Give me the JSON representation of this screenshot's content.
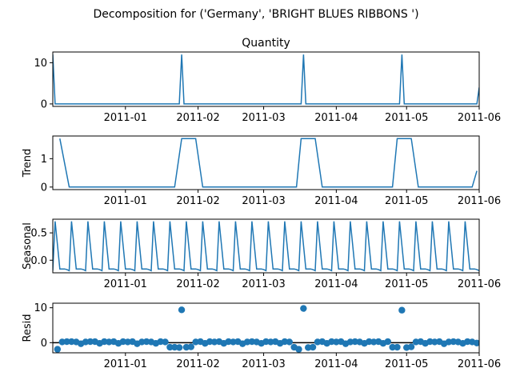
{
  "suptitle": "Decomposition for ('Germany', 'BRIGHT BLUES RIBBONS ')",
  "colors": {
    "line": "#1f77b4",
    "axis": "#000000",
    "zero": "#000000"
  },
  "chart_data": {
    "type": "line",
    "x_ticks": [
      "2011-01",
      "2011-02",
      "2011-03",
      "2011-04",
      "2011-05",
      "2011-06"
    ],
    "x_tick_values": [
      "2011-01-01",
      "2011-02-01",
      "2011-03-01",
      "2011-04-01",
      "2011-05-01",
      "2011-06-01"
    ],
    "xlim": [
      "2010-12-01",
      "2011-06-01"
    ],
    "panels": [
      {
        "id": "observed",
        "title": "Quantity",
        "ylabel": "",
        "kind": "line",
        "ylim": [
          -0.6,
          12.6
        ],
        "y_ticks": [
          0,
          10
        ],
        "points": [
          [
            "2010-12-01",
            12
          ],
          [
            "2010-12-02",
            0
          ],
          [
            "2011-01-24",
            0
          ],
          [
            "2011-01-25",
            12
          ],
          [
            "2011-01-26",
            0
          ],
          [
            "2011-03-17",
            0
          ],
          [
            "2011-03-18",
            12
          ],
          [
            "2011-03-19",
            0
          ],
          [
            "2011-04-28",
            0
          ],
          [
            "2011-04-29",
            12
          ],
          [
            "2011-04-30",
            0
          ],
          [
            "2011-05-31",
            0
          ],
          [
            "2011-06-01",
            4
          ]
        ]
      },
      {
        "id": "trend",
        "title": "",
        "ylabel": "Trend",
        "kind": "line",
        "ylim": [
          -0.09,
          1.8
        ],
        "y_ticks": [
          0,
          1
        ],
        "points": [
          [
            "2010-12-04",
            1.71
          ],
          [
            "2010-12-08",
            0
          ],
          [
            "2011-01-22",
            0
          ],
          [
            "2011-01-25",
            1.71
          ],
          [
            "2011-01-31",
            1.71
          ],
          [
            "2011-02-03",
            0
          ],
          [
            "2011-03-15",
            0
          ],
          [
            "2011-03-17",
            1.71
          ],
          [
            "2011-03-23",
            1.71
          ],
          [
            "2011-03-26",
            0
          ],
          [
            "2011-04-25",
            0
          ],
          [
            "2011-04-27",
            1.71
          ],
          [
            "2011-05-03",
            1.71
          ],
          [
            "2011-05-06",
            0
          ],
          [
            "2011-05-29",
            0
          ],
          [
            "2011-05-31",
            0.57
          ]
        ]
      },
      {
        "id": "seasonal",
        "title": "",
        "ylabel": "Seasonal",
        "kind": "seasonal",
        "ylim": [
          -0.23,
          0.75
        ],
        "y_ticks": [
          0.0,
          0.5
        ],
        "y_tick_labels": [
          "0.0",
          "0.5"
        ],
        "period_days": 7,
        "start": "2010-12-01",
        "end": "2011-06-01",
        "pattern": [
          -0.19,
          0.71,
          0.27,
          -0.16,
          -0.16,
          -0.16,
          -0.17
        ]
      },
      {
        "id": "resid",
        "title": "",
        "ylabel": "Resid",
        "kind": "scatter",
        "ylim": [
          -2.9,
          11.3
        ],
        "y_ticks": [
          0,
          10
        ],
        "zero_line": true,
        "points": [
          [
            "2010-12-03",
            -1.9
          ],
          [
            "2010-12-05",
            0.2
          ],
          [
            "2010-12-07",
            0.3
          ],
          [
            "2010-12-09",
            0.3
          ],
          [
            "2010-12-11",
            0.2
          ],
          [
            "2010-12-13",
            -0.3
          ],
          [
            "2010-12-15",
            0.2
          ],
          [
            "2010-12-17",
            0.3
          ],
          [
            "2010-12-19",
            0.3
          ],
          [
            "2010-12-21",
            -0.2
          ],
          [
            "2010-12-23",
            0.3
          ],
          [
            "2010-12-25",
            0.2
          ],
          [
            "2010-12-27",
            0.3
          ],
          [
            "2010-12-29",
            -0.2
          ],
          [
            "2010-12-31",
            0.3
          ],
          [
            "2011-01-02",
            0.2
          ],
          [
            "2011-01-04",
            0.3
          ],
          [
            "2011-01-06",
            -0.3
          ],
          [
            "2011-01-08",
            0.2
          ],
          [
            "2011-01-10",
            0.3
          ],
          [
            "2011-01-12",
            0.2
          ],
          [
            "2011-01-14",
            -0.2
          ],
          [
            "2011-01-16",
            0.3
          ],
          [
            "2011-01-18",
            0.2
          ],
          [
            "2011-01-20",
            -1.3
          ],
          [
            "2011-01-22",
            -1.3
          ],
          [
            "2011-01-24",
            -1.4
          ],
          [
            "2011-01-25",
            9.4
          ],
          [
            "2011-01-27",
            -1.3
          ],
          [
            "2011-01-29",
            -1.2
          ],
          [
            "2011-01-31",
            0.2
          ],
          [
            "2011-02-02",
            0.3
          ],
          [
            "2011-02-04",
            -0.2
          ],
          [
            "2011-02-06",
            0.3
          ],
          [
            "2011-02-08",
            0.2
          ],
          [
            "2011-02-10",
            0.3
          ],
          [
            "2011-02-12",
            -0.2
          ],
          [
            "2011-02-14",
            0.3
          ],
          [
            "2011-02-16",
            0.2
          ],
          [
            "2011-02-18",
            0.3
          ],
          [
            "2011-02-20",
            -0.3
          ],
          [
            "2011-02-22",
            0.2
          ],
          [
            "2011-02-24",
            0.3
          ],
          [
            "2011-02-26",
            0.2
          ],
          [
            "2011-02-28",
            -0.2
          ],
          [
            "2011-03-02",
            0.3
          ],
          [
            "2011-03-04",
            0.2
          ],
          [
            "2011-03-06",
            0.3
          ],
          [
            "2011-03-08",
            -0.2
          ],
          [
            "2011-03-10",
            0.3
          ],
          [
            "2011-03-12",
            0.2
          ],
          [
            "2011-03-14",
            -1.3
          ],
          [
            "2011-03-16",
            -1.9
          ],
          [
            "2011-03-18",
            9.8
          ],
          [
            "2011-03-20",
            -1.4
          ],
          [
            "2011-03-22",
            -1.3
          ],
          [
            "2011-03-24",
            0.2
          ],
          [
            "2011-03-26",
            0.3
          ],
          [
            "2011-03-28",
            -0.2
          ],
          [
            "2011-03-30",
            0.3
          ],
          [
            "2011-04-01",
            0.2
          ],
          [
            "2011-04-03",
            0.3
          ],
          [
            "2011-04-05",
            -0.3
          ],
          [
            "2011-04-07",
            0.2
          ],
          [
            "2011-04-09",
            0.3
          ],
          [
            "2011-04-11",
            0.2
          ],
          [
            "2011-04-13",
            -0.2
          ],
          [
            "2011-04-15",
            0.3
          ],
          [
            "2011-04-17",
            0.2
          ],
          [
            "2011-04-19",
            0.3
          ],
          [
            "2011-04-21",
            -0.2
          ],
          [
            "2011-04-23",
            0.3
          ],
          [
            "2011-04-25",
            -1.3
          ],
          [
            "2011-04-27",
            -1.3
          ],
          [
            "2011-04-29",
            9.3
          ],
          [
            "2011-05-01",
            -1.4
          ],
          [
            "2011-05-03",
            -1.2
          ],
          [
            "2011-05-05",
            0.2
          ],
          [
            "2011-05-07",
            0.3
          ],
          [
            "2011-05-09",
            -0.2
          ],
          [
            "2011-05-11",
            0.3
          ],
          [
            "2011-05-13",
            0.2
          ],
          [
            "2011-05-15",
            0.3
          ],
          [
            "2011-05-17",
            -0.3
          ],
          [
            "2011-05-19",
            0.2
          ],
          [
            "2011-05-21",
            0.3
          ],
          [
            "2011-05-23",
            0.2
          ],
          [
            "2011-05-25",
            -0.2
          ],
          [
            "2011-05-27",
            0.3
          ],
          [
            "2011-05-29",
            0.2
          ],
          [
            "2011-05-31",
            -0.1
          ]
        ]
      }
    ]
  }
}
